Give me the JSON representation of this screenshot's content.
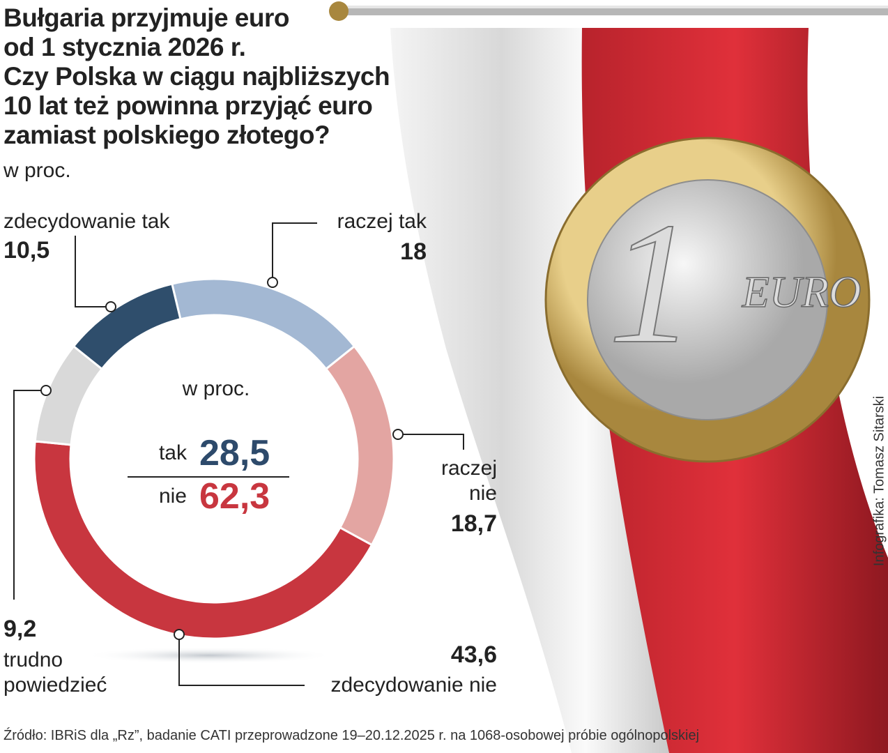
{
  "chart_data": {
    "type": "donut",
    "title": [
      "Bułgaria przyjmuje euro",
      "od 1 stycznia 2026 r.",
      "Czy Polska w ciągu najbliższych",
      "10 lat też powinna przyjąć euro",
      "zamiast polskiego złotego?"
    ],
    "subtitle": "w proc.",
    "categories": [
      "raczej tak",
      "raczej nie",
      "zdecydowanie nie",
      "trudno powiedzieć",
      "zdecydowanie tak"
    ],
    "values": [
      18,
      18.7,
      43.6,
      9.2,
      10.5
    ],
    "value_labels": [
      "18",
      "18,7",
      "43,6",
      "9,2",
      "10,5"
    ],
    "colors": [
      "#a3b8d3",
      "#e3a5a2",
      "#c8363f",
      "#d9d9d9",
      "#2f4e6c"
    ],
    "center_title": "w proc.",
    "summary": [
      {
        "label": "tak",
        "value": {
          "value": 28.5,
          "label": "28,5"
        },
        "color": "#2d4a6b"
      },
      {
        "label": "nie",
        "value": {
          "value": 62.3,
          "label": "62,3"
        },
        "color": "#c8363f"
      }
    ],
    "source": "Źródło: IBRiS dla „Rz”, badanie CATI przeprowadzone 19–20.12.2025 r. na 1068-osobowej próbie ogólnopolskiej",
    "credit": "Infografika: Tomasz Sitarski"
  },
  "illustration": {
    "coin_value": "1",
    "coin_text": "EURO"
  }
}
